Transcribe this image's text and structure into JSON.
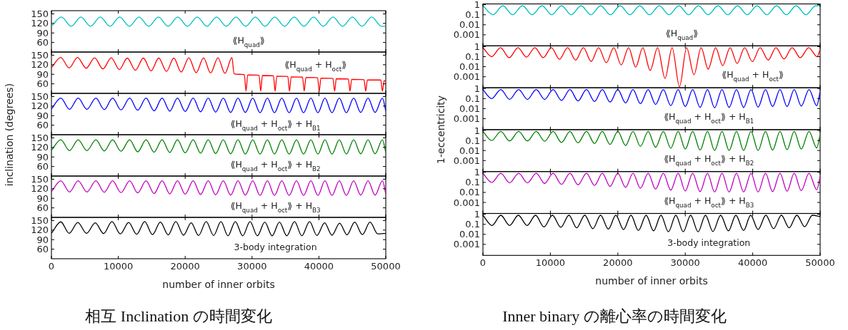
{
  "chart_data": [
    {
      "type": "line",
      "ylabel": "inclination (degrees)",
      "tick_labels": "y",
      "annotations": [
        "⟪H$_{quad}$⟫"
      ],
      "xlim": [
        0,
        50000
      ],
      "xticks": [
        0,
        10000,
        20000,
        30000,
        40000,
        50000
      ],
      "ylim": [
        30,
        160
      ],
      "yticks": [
        60,
        90,
        120,
        150
      ],
      "series": [
        {
          "color": "#00bfbf",
          "x": [
            0,
            1500,
            2950,
            4400,
            5850,
            7300,
            8750,
            10200,
            11650,
            13100,
            14550,
            16000,
            17450,
            18900,
            20350,
            21800,
            23250,
            24700,
            26150,
            27600,
            29050,
            30500,
            31950,
            33400,
            34850,
            36300,
            37750,
            39200,
            40650,
            42100,
            43550,
            45000,
            46450,
            47900,
            49350,
            50000
          ],
          "values": [
            111,
            140,
            111,
            140,
            111,
            140,
            111,
            140,
            111,
            140,
            111,
            140,
            111,
            140,
            111,
            140,
            111,
            140,
            111,
            140,
            111,
            140,
            111,
            140,
            111,
            140,
            111,
            140,
            111,
            140,
            111,
            140,
            111,
            140,
            111,
            111
          ]
        }
      ]
    },
    {
      "type": "line",
      "tick_labels": "y",
      "annotations": [
        "⟪H$_{quad}$ + H$_{oct}$⟫"
      ],
      "xlim": [
        0,
        50000
      ],
      "xticks": [
        0,
        10000,
        20000,
        30000,
        40000,
        50000
      ],
      "ylim": [
        30,
        160
      ],
      "yticks": [
        60,
        90,
        120,
        150
      ],
      "series": [
        {
          "color": "#ff0000",
          "x": [
            0,
            1400,
            2650,
            3900,
            5200,
            6450,
            7700,
            8950,
            10150,
            11350,
            12550,
            13750,
            14900,
            16050,
            17200,
            18300,
            19400,
            20550,
            21650,
            22750,
            23800,
            24900,
            25950,
            27000,
            27300,
            28000,
            28850,
            29100,
            29350,
            31050,
            31300,
            31550,
            33200,
            33450,
            33700,
            35350,
            35600,
            35850,
            37550,
            37800,
            38050,
            39800,
            40050,
            40300,
            42100,
            42350,
            42600,
            44400,
            44650,
            44900,
            46750,
            47000,
            47250,
            49250,
            49500,
            49750,
            50000
          ],
          "values": [
            111,
            143,
            110,
            143,
            109,
            142,
            107,
            142,
            105,
            141,
            103,
            141,
            101,
            141,
            99,
            141,
            97,
            142,
            95,
            142,
            94,
            142,
            93,
            143,
            92,
            90,
            89,
            37,
            88,
            87,
            37,
            86,
            85,
            37,
            84,
            83,
            37,
            82,
            81,
            37,
            80,
            79,
            37,
            78,
            77,
            37,
            76,
            75,
            37,
            74,
            73,
            37,
            72,
            72,
            37,
            70,
            68
          ]
        }
      ]
    },
    {
      "type": "line",
      "tick_labels": "y",
      "annotations": [
        "⟪H$_{quad}$ + H$_{oct}$⟫ + H$_{B1}$"
      ],
      "xlim": [
        0,
        50000
      ],
      "xticks": [
        0,
        10000,
        20000,
        30000,
        40000,
        50000
      ],
      "ylim": [
        30,
        160
      ],
      "yticks": [
        60,
        90,
        120,
        150
      ],
      "series": [
        {
          "color": "#0000ff",
          "x": [
            0,
            1400,
            2700,
            4000,
            5300,
            6650,
            7900,
            9150,
            10400,
            11700,
            12900,
            14150,
            15350,
            16550,
            17700,
            18850,
            20000,
            21200,
            22300,
            23450,
            24550,
            25700,
            26800,
            27900,
            29000,
            30100,
            31200,
            32300,
            33350,
            34450,
            35550,
            36650,
            37700,
            38800,
            39850,
            40900,
            41950,
            43050,
            44100,
            45200,
            46250,
            47350,
            48400,
            49500,
            50000
          ],
          "values": [
            111,
            145,
            110,
            145,
            110,
            145,
            109,
            145,
            108,
            145,
            107,
            145,
            105,
            145,
            104,
            145,
            103,
            145,
            102,
            145,
            101,
            145,
            100,
            145,
            100,
            145,
            99,
            145,
            99,
            145,
            99,
            145,
            99,
            145,
            99,
            145,
            99,
            145,
            99,
            145,
            100,
            145,
            100,
            145,
            105
          ]
        }
      ]
    },
    {
      "type": "line",
      "tick_labels": "y",
      "annotations": [
        "⟪H$_{quad}$ + H$_{oct}$⟫ + H$_{B2}$"
      ],
      "xlim": [
        0,
        50000
      ],
      "xticks": [
        0,
        10000,
        20000,
        30000,
        40000,
        50000
      ],
      "ylim": [
        30,
        160
      ],
      "yticks": [
        60,
        90,
        120,
        150
      ],
      "series": [
        {
          "color": "#008000",
          "x": [
            0,
            1400,
            2700,
            4000,
            5300,
            6650,
            7900,
            9150,
            10400,
            11700,
            12900,
            14150,
            15350,
            16550,
            17700,
            18850,
            20000,
            21200,
            22300,
            23450,
            24550,
            25700,
            26800,
            27900,
            29000,
            30100,
            31200,
            32300,
            33350,
            34450,
            35550,
            36650,
            37700,
            38800,
            39850,
            40900,
            41950,
            43050,
            44100,
            45200,
            46250,
            47350,
            48400,
            49500,
            50000
          ],
          "values": [
            111,
            144,
            110,
            144,
            110,
            144,
            109,
            144,
            108,
            144,
            106,
            144,
            105,
            144,
            104,
            144,
            103,
            144,
            102,
            144,
            101,
            144,
            100,
            144,
            99,
            144,
            99,
            144,
            99,
            144,
            99,
            144,
            99,
            144,
            99,
            144,
            99,
            144,
            99,
            144,
            100,
            144,
            100,
            144,
            104
          ]
        }
      ]
    },
    {
      "type": "line",
      "tick_labels": "y",
      "annotations": [
        "⟪H$_{quad}$ + H$_{oct}$⟫ + H$_{B3}$"
      ],
      "xlim": [
        0,
        50000
      ],
      "xticks": [
        0,
        10000,
        20000,
        30000,
        40000,
        50000
      ],
      "ylim": [
        30,
        160
      ],
      "yticks": [
        60,
        90,
        120,
        150
      ],
      "series": [
        {
          "color": "#bf00bf",
          "x": [
            0,
            1400,
            2700,
            4000,
            5300,
            6650,
            7900,
            9150,
            10400,
            11700,
            12900,
            14150,
            15350,
            16550,
            17700,
            18850,
            20000,
            21200,
            22300,
            23450,
            24550,
            25700,
            26800,
            27900,
            29000,
            30100,
            31200,
            32300,
            33350,
            34450,
            35550,
            36650,
            37700,
            38800,
            39850,
            40900,
            41950,
            43050,
            44100,
            45200,
            46250,
            47350,
            48400,
            49500,
            50000
          ],
          "values": [
            111,
            145,
            110,
            145,
            110,
            145,
            109,
            145,
            108,
            145,
            107,
            145,
            105,
            145,
            104,
            145,
            103,
            145,
            102,
            145,
            101,
            145,
            100,
            145,
            100,
            145,
            99,
            145,
            99,
            145,
            99,
            145,
            99,
            145,
            99,
            145,
            99,
            145,
            99,
            145,
            100,
            145,
            100,
            145,
            104
          ]
        }
      ]
    },
    {
      "type": "line",
      "xlabel": "number of inner orbits",
      "annotations": [
        "3-body integration",
        "相互 Inclination の時間変化"
      ],
      "xlim": [
        0,
        50000
      ],
      "xticks": [
        0,
        10000,
        20000,
        30000,
        40000,
        50000
      ],
      "ylim": [
        30,
        160
      ],
      "yticks": [
        60,
        90,
        120,
        150
      ],
      "series": [
        {
          "color": "#000000",
          "x": [
            0,
            1400,
            2650,
            3950,
            5250,
            6550,
            7800,
            9050,
            10300,
            11550,
            12750,
            13950,
            15100,
            16300,
            17450,
            18600,
            19750,
            20900,
            22000,
            23150,
            24250,
            25350,
            26400,
            27500,
            28600,
            29700,
            30800,
            31900,
            33000,
            34100,
            35200,
            36350,
            37450,
            38600,
            39700,
            40850,
            41950,
            43100,
            44200,
            45350,
            46500,
            47650,
            48800,
            50000
          ],
          "values": [
            110,
            146,
            110,
            144,
            110,
            143,
            109,
            147,
            108,
            144,
            107,
            147,
            106,
            145,
            105,
            147,
            104,
            143,
            103,
            147,
            103,
            147,
            102,
            147,
            102,
            147,
            102,
            145,
            102,
            145,
            102,
            147,
            102,
            147,
            103,
            143,
            104,
            142,
            105,
            145,
            106,
            145,
            108,
            110
          ]
        }
      ]
    },
    {
      "type": "line",
      "ylabel": "1-eccentricity",
      "log": true,
      "tick_labels": "y",
      "annotations": [
        "⟪H$_{quad}$⟫"
      ],
      "xlim": [
        0,
        50000
      ],
      "xticks": [
        0,
        10000,
        20000,
        30000,
        40000,
        50000
      ],
      "ylim": [
        8e-05,
        1.2
      ],
      "yticks": [
        0.001,
        0.01,
        0.1,
        1
      ],
      "series": [
        {
          "color": "#00bfbf",
          "x": [
            0,
            1500,
            2950,
            4400,
            5850,
            7300,
            8750,
            10200,
            11650,
            13100,
            14550,
            16000,
            17450,
            18900,
            20350,
            21800,
            23250,
            24700,
            26150,
            27600,
            29050,
            30500,
            31950,
            33400,
            34850,
            36300,
            37750,
            39200,
            40650,
            42100,
            43550,
            45000,
            46450,
            47900,
            49350,
            50000
          ],
          "values": [
            0.8,
            0.1,
            0.8,
            0.1,
            0.8,
            0.1,
            0.8,
            0.1,
            0.8,
            0.1,
            0.8,
            0.1,
            0.8,
            0.1,
            0.8,
            0.1,
            0.8,
            0.1,
            0.8,
            0.1,
            0.8,
            0.1,
            0.8,
            0.1,
            0.8,
            0.1,
            0.8,
            0.1,
            0.8,
            0.1,
            0.8,
            0.1,
            0.8,
            0.1,
            0.8,
            0.8
          ]
        }
      ]
    },
    {
      "type": "line",
      "log": true,
      "tick_labels": "y",
      "annotations": [
        "⟪H$_{quad}$ + H$_{oct}$⟫"
      ],
      "xlim": [
        0,
        50000
      ],
      "xticks": [
        0,
        10000,
        20000,
        30000,
        40000,
        50000
      ],
      "ylim": [
        8e-05,
        1.2
      ],
      "yticks": [
        0.001,
        0.01,
        0.1,
        1
      ],
      "series": [
        {
          "color": "#ff0000",
          "x": [
            0,
            1300,
            2600,
            3900,
            5200,
            6450,
            7700,
            8950,
            10150,
            11350,
            12550,
            13750,
            14900,
            16050,
            17150,
            18300,
            19400,
            20500,
            21600,
            22650,
            23700,
            24800,
            25900,
            27000,
            28050,
            29150,
            30200,
            31300,
            32350,
            33400,
            34500,
            35550,
            36650,
            37700,
            38800,
            39950,
            41100,
            42300,
            43450,
            44650,
            45850,
            47050,
            48300,
            49550,
            50000
          ],
          "values": [
            0.8,
            0.1,
            0.8,
            0.08,
            0.8,
            0.09,
            0.8,
            0.08,
            0.8,
            0.055,
            0.8,
            0.045,
            0.8,
            0.033,
            0.8,
            0.025,
            0.8,
            0.015,
            0.8,
            0.009,
            0.8,
            0.0043,
            0.8,
            0.0007,
            0.8,
            0.0001,
            0.8,
            0.0016,
            0.8,
            0.0057,
            0.8,
            0.013,
            0.8,
            0.021,
            0.8,
            0.032,
            0.8,
            0.045,
            0.8,
            0.06,
            0.8,
            0.08,
            0.8,
            0.1,
            0.55
          ]
        }
      ]
    },
    {
      "type": "line",
      "log": true,
      "tick_labels": "y",
      "annotations": [
        "⟪H$_{quad}$ + H$_{oct}$⟫ + H$_{B1}$"
      ],
      "xlim": [
        0,
        50000
      ],
      "xticks": [
        0,
        10000,
        20000,
        30000,
        40000,
        50000
      ],
      "ylim": [
        8e-05,
        1.2
      ],
      "yticks": [
        0.001,
        0.01,
        0.1,
        1
      ],
      "series": [
        {
          "color": "#0000ff",
          "x": [
            0,
            1300,
            2650,
            3950,
            5300,
            6600,
            7900,
            9150,
            10400,
            11650,
            12900,
            14100,
            15350,
            16550,
            17700,
            18850,
            20000,
            21150,
            22250,
            23350,
            24500,
            25600,
            26750,
            27850,
            28950,
            30000,
            31100,
            32200,
            33300,
            34350,
            35450,
            36500,
            37600,
            38650,
            39750,
            40800,
            41900,
            42950,
            44050,
            45100,
            46150,
            47200,
            48350,
            49500,
            50000
          ],
          "values": [
            0.8,
            0.1,
            0.8,
            0.083,
            0.8,
            0.083,
            0.8,
            0.083,
            0.8,
            0.066,
            0.8,
            0.058,
            0.8,
            0.052,
            0.8,
            0.045,
            0.8,
            0.037,
            0.8,
            0.031,
            0.8,
            0.026,
            0.8,
            0.02,
            0.8,
            0.016,
            0.8,
            0.013,
            0.8,
            0.012,
            0.8,
            0.013,
            0.8,
            0.013,
            0.8,
            0.014,
            0.8,
            0.016,
            0.8,
            0.016,
            0.8,
            0.018,
            0.8,
            0.019,
            0.5
          ]
        }
      ]
    },
    {
      "type": "line",
      "log": true,
      "tick_labels": "y",
      "annotations": [
        "⟪H$_{quad}$ + H$_{oct}$⟫ + H$_{B2}$"
      ],
      "xlim": [
        0,
        50000
      ],
      "xticks": [
        0,
        10000,
        20000,
        30000,
        40000,
        50000
      ],
      "ylim": [
        8e-05,
        1.2
      ],
      "yticks": [
        0.001,
        0.01,
        0.1,
        1
      ],
      "series": [
        {
          "color": "#008000",
          "x": [
            0,
            1300,
            2650,
            3950,
            5300,
            6600,
            7900,
            9150,
            10400,
            11650,
            12900,
            14100,
            15350,
            16550,
            17700,
            18850,
            20000,
            21150,
            22250,
            23350,
            24500,
            25600,
            26750,
            27850,
            28950,
            30000,
            31100,
            32200,
            33300,
            34350,
            35450,
            36500,
            37600,
            38650,
            39750,
            40800,
            41900,
            42950,
            44050,
            45100,
            46150,
            47200,
            48350,
            49500,
            50000
          ],
          "values": [
            0.8,
            0.1,
            0.8,
            0.09,
            0.8,
            0.09,
            0.8,
            0.085,
            0.8,
            0.063,
            0.8,
            0.058,
            0.8,
            0.05,
            0.8,
            0.04,
            0.8,
            0.032,
            0.8,
            0.026,
            0.8,
            0.021,
            0.8,
            0.017,
            0.8,
            0.014,
            0.8,
            0.011,
            0.8,
            0.01,
            0.8,
            0.01,
            0.8,
            0.01,
            0.8,
            0.01,
            0.8,
            0.011,
            0.8,
            0.012,
            0.8,
            0.014,
            0.8,
            0.018,
            0.4
          ]
        }
      ]
    },
    {
      "type": "line",
      "log": true,
      "tick_labels": "y",
      "annotations": [
        "⟪H$_{quad}$ + H$_{oct}$⟫ + H$_{B3}$"
      ],
      "xlim": [
        0,
        50000
      ],
      "xticks": [
        0,
        10000,
        20000,
        30000,
        40000,
        50000
      ],
      "ylim": [
        8e-05,
        1.2
      ],
      "yticks": [
        0.001,
        0.01,
        0.1,
        1
      ],
      "series": [
        {
          "color": "#bf00bf",
          "x": [
            0,
            1300,
            2650,
            3950,
            5300,
            6600,
            7900,
            9150,
            10400,
            11650,
            12900,
            14100,
            15350,
            16550,
            17700,
            18850,
            20000,
            21150,
            22250,
            23350,
            24500,
            25600,
            26750,
            27850,
            28950,
            30000,
            31100,
            32200,
            33300,
            34350,
            35450,
            36500,
            37600,
            38650,
            39750,
            40800,
            41900,
            42950,
            44050,
            45100,
            46150,
            47200,
            48350,
            49500,
            50000
          ],
          "values": [
            0.8,
            0.1,
            0.8,
            0.09,
            0.8,
            0.09,
            0.8,
            0.08,
            0.8,
            0.065,
            0.8,
            0.058,
            0.8,
            0.05,
            0.8,
            0.04,
            0.8,
            0.032,
            0.8,
            0.026,
            0.8,
            0.021,
            0.8,
            0.017,
            0.8,
            0.014,
            0.8,
            0.012,
            0.8,
            0.011,
            0.8,
            0.011,
            0.8,
            0.011,
            0.8,
            0.011,
            0.8,
            0.012,
            0.8,
            0.013,
            0.8,
            0.015,
            0.8,
            0.018,
            0.4
          ]
        }
      ]
    },
    {
      "type": "line",
      "xlabel": "number of inner orbits",
      "log": true,
      "annotations": [
        "3-body integration",
        "Inner binary の離心率の時間変化"
      ],
      "xlim": [
        0,
        50000
      ],
      "xticks": [
        0,
        10000,
        20000,
        30000,
        40000,
        50000
      ],
      "ylim": [
        8e-05,
        1.2
      ],
      "yticks": [
        0.001,
        0.01,
        0.1,
        1
      ],
      "series": [
        {
          "color": "#000000",
          "x": [
            0,
            1350,
            2650,
            3950,
            5250,
            6550,
            7800,
            9050,
            10300,
            11550,
            12750,
            13900,
            15100,
            16300,
            17450,
            18600,
            19700,
            20850,
            21950,
            23050,
            24200,
            25300,
            26400,
            27500,
            28600,
            29700,
            30800,
            31900,
            33000,
            34100,
            35250,
            36400,
            37500,
            38650,
            39700,
            40800,
            41950,
            43100,
            44250,
            45400,
            46550,
            47700,
            48850,
            50000
          ],
          "values": [
            0.8,
            0.077,
            0.8,
            0.077,
            0.8,
            0.077,
            0.8,
            0.055,
            0.8,
            0.05,
            0.8,
            0.044,
            0.8,
            0.037,
            0.8,
            0.033,
            0.8,
            0.03,
            0.8,
            0.024,
            0.8,
            0.022,
            0.8,
            0.018,
            0.8,
            0.018,
            0.8,
            0.018,
            0.8,
            0.019,
            0.8,
            0.022,
            0.8,
            0.024,
            0.8,
            0.03,
            0.8,
            0.037,
            0.8,
            0.044,
            0.8,
            0.058,
            0.8,
            0.6
          ]
        }
      ]
    }
  ]
}
